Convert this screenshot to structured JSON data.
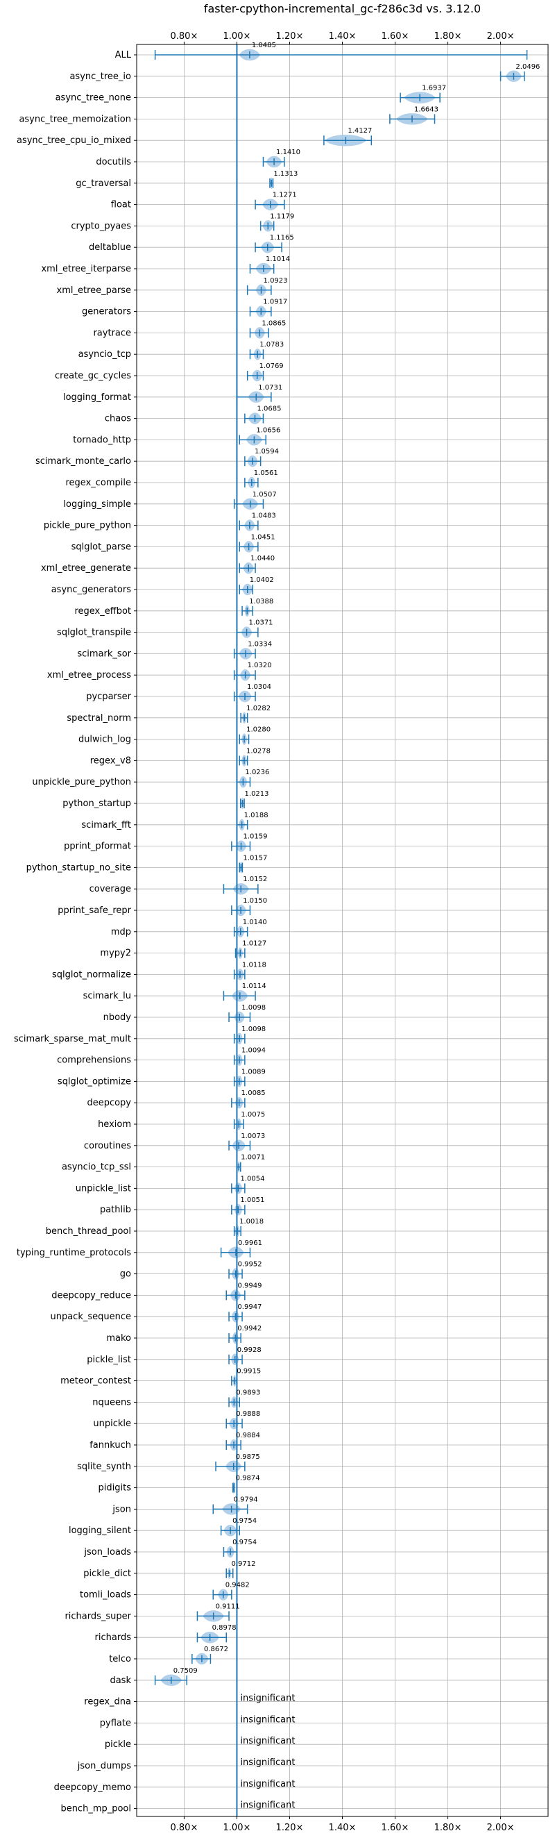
{
  "chart_data": {
    "type": "violin",
    "title": "faster-cpython-incremental_gc-f286c3d vs. 3.12.0",
    "xlim": [
      0.62,
      2.18
    ],
    "xticks": [
      0.8,
      1.0,
      1.2,
      1.4,
      1.6,
      1.8,
      2.0
    ],
    "xtick_labels": [
      "0.80×",
      "1.00×",
      "1.20×",
      "1.40×",
      "1.60×",
      "1.80×",
      "2.00×"
    ],
    "reference_line": 1.0,
    "grid": true,
    "colors": {
      "accent": "#1f77b4",
      "violin": "#a6c8e6",
      "grid": "#b0b0b0"
    },
    "benchmarks": [
      {
        "name": "ALL",
        "label": "1.0485",
        "center": 1.0485,
        "lo": 0.69,
        "hi": 2.1,
        "vw": 0.04
      },
      {
        "name": "async_tree_io",
        "label": "2.0496",
        "center": 2.0496,
        "lo": 2.0,
        "hi": 2.09,
        "vw": 0.03
      },
      {
        "name": "async_tree_none",
        "label": "1.6937",
        "center": 1.6937,
        "lo": 1.62,
        "hi": 1.77,
        "vw": 0.06
      },
      {
        "name": "async_tree_memoization",
        "label": "1.6643",
        "center": 1.6643,
        "lo": 1.58,
        "hi": 1.75,
        "vw": 0.06
      },
      {
        "name": "async_tree_cpu_io_mixed",
        "label": "1.4127",
        "center": 1.4127,
        "lo": 1.33,
        "hi": 1.51,
        "vw": 0.08
      },
      {
        "name": "docutils",
        "label": "1.1410",
        "center": 1.141,
        "lo": 1.1,
        "hi": 1.18,
        "vw": 0.03
      },
      {
        "name": "gc_traversal",
        "label": "1.1313",
        "center": 1.1313,
        "lo": 1.125,
        "hi": 1.137,
        "vw": 0.005
      },
      {
        "name": "float",
        "label": "1.1271",
        "center": 1.1271,
        "lo": 1.07,
        "hi": 1.18,
        "vw": 0.03
      },
      {
        "name": "crypto_pyaes",
        "label": "1.1179",
        "center": 1.1179,
        "lo": 1.09,
        "hi": 1.14,
        "vw": 0.02
      },
      {
        "name": "deltablue",
        "label": "1.1165",
        "center": 1.1165,
        "lo": 1.07,
        "hi": 1.17,
        "vw": 0.025
      },
      {
        "name": "xml_etree_iterparse",
        "label": "1.1014",
        "center": 1.1014,
        "lo": 1.05,
        "hi": 1.14,
        "vw": 0.03
      },
      {
        "name": "xml_etree_parse",
        "label": "1.0923",
        "center": 1.0923,
        "lo": 1.04,
        "hi": 1.13,
        "vw": 0.02
      },
      {
        "name": "generators",
        "label": "1.0917",
        "center": 1.0917,
        "lo": 1.05,
        "hi": 1.13,
        "vw": 0.02
      },
      {
        "name": "raytrace",
        "label": "1.0865",
        "center": 1.0865,
        "lo": 1.05,
        "hi": 1.12,
        "vw": 0.02
      },
      {
        "name": "asyncio_tcp",
        "label": "1.0783",
        "center": 1.0783,
        "lo": 1.05,
        "hi": 1.1,
        "vw": 0.015
      },
      {
        "name": "create_gc_cycles",
        "label": "1.0769",
        "center": 1.0769,
        "lo": 1.04,
        "hi": 1.1,
        "vw": 0.02
      },
      {
        "name": "logging_format",
        "label": "1.0731",
        "center": 1.0731,
        "lo": 1.0,
        "hi": 1.13,
        "vw": 0.03
      },
      {
        "name": "chaos",
        "label": "1.0685",
        "center": 1.0685,
        "lo": 1.03,
        "hi": 1.1,
        "vw": 0.025
      },
      {
        "name": "tornado_http",
        "label": "1.0656",
        "center": 1.0656,
        "lo": 1.01,
        "hi": 1.11,
        "vw": 0.03
      },
      {
        "name": "scimark_monte_carlo",
        "label": "1.0594",
        "center": 1.0594,
        "lo": 1.03,
        "hi": 1.09,
        "vw": 0.02
      },
      {
        "name": "regex_compile",
        "label": "1.0561",
        "center": 1.0561,
        "lo": 1.03,
        "hi": 1.08,
        "vw": 0.015
      },
      {
        "name": "logging_simple",
        "label": "1.0507",
        "center": 1.0507,
        "lo": 0.99,
        "hi": 1.1,
        "vw": 0.03
      },
      {
        "name": "pickle_pure_python",
        "label": "1.0483",
        "center": 1.0483,
        "lo": 1.01,
        "hi": 1.08,
        "vw": 0.02
      },
      {
        "name": "sqlglot_parse",
        "label": "1.0451",
        "center": 1.0451,
        "lo": 1.01,
        "hi": 1.08,
        "vw": 0.02
      },
      {
        "name": "xml_etree_generate",
        "label": "1.0440",
        "center": 1.044,
        "lo": 1.01,
        "hi": 1.07,
        "vw": 0.02
      },
      {
        "name": "async_generators",
        "label": "1.0402",
        "center": 1.0402,
        "lo": 1.01,
        "hi": 1.06,
        "vw": 0.02
      },
      {
        "name": "regex_effbot",
        "label": "1.0388",
        "center": 1.0388,
        "lo": 1.02,
        "hi": 1.06,
        "vw": 0.01
      },
      {
        "name": "sqlglot_transpile",
        "label": "1.0371",
        "center": 1.0371,
        "lo": 1.0,
        "hi": 1.08,
        "vw": 0.02
      },
      {
        "name": "scimark_sor",
        "label": "1.0334",
        "center": 1.0334,
        "lo": 0.99,
        "hi": 1.07,
        "vw": 0.025
      },
      {
        "name": "xml_etree_process",
        "label": "1.0320",
        "center": 1.032,
        "lo": 0.99,
        "hi": 1.07,
        "vw": 0.02
      },
      {
        "name": "pycparser",
        "label": "1.0304",
        "center": 1.0304,
        "lo": 0.99,
        "hi": 1.07,
        "vw": 0.025
      },
      {
        "name": "spectral_norm",
        "label": "1.0282",
        "center": 1.0282,
        "lo": 1.015,
        "hi": 1.04,
        "vw": 0.008
      },
      {
        "name": "dulwich_log",
        "label": "1.0280",
        "center": 1.028,
        "lo": 1.01,
        "hi": 1.045,
        "vw": 0.01
      },
      {
        "name": "regex_v8",
        "label": "1.0278",
        "center": 1.0278,
        "lo": 1.01,
        "hi": 1.04,
        "vw": 0.01
      },
      {
        "name": "unpickle_pure_python",
        "label": "1.0236",
        "center": 1.0236,
        "lo": 1.0,
        "hi": 1.05,
        "vw": 0.015
      },
      {
        "name": "python_startup",
        "label": "1.0213",
        "center": 1.0213,
        "lo": 1.014,
        "hi": 1.028,
        "vw": 0.005
      },
      {
        "name": "scimark_fft",
        "label": "1.0188",
        "center": 1.0188,
        "lo": 1.0,
        "hi": 1.04,
        "vw": 0.012
      },
      {
        "name": "pprint_pformat",
        "label": "1.0159",
        "center": 1.0159,
        "lo": 0.98,
        "hi": 1.05,
        "vw": 0.02
      },
      {
        "name": "python_startup_no_site",
        "label": "1.0157",
        "center": 1.0157,
        "lo": 1.01,
        "hi": 1.021,
        "vw": 0.004
      },
      {
        "name": "coverage",
        "label": "1.0152",
        "center": 1.0152,
        "lo": 0.95,
        "hi": 1.08,
        "vw": 0.03
      },
      {
        "name": "pprint_safe_repr",
        "label": "1.0150",
        "center": 1.015,
        "lo": 0.98,
        "hi": 1.05,
        "vw": 0.02
      },
      {
        "name": "mdp",
        "label": "1.0140",
        "center": 1.014,
        "lo": 0.99,
        "hi": 1.04,
        "vw": 0.015
      },
      {
        "name": "mypy2",
        "label": "1.0127",
        "center": 1.0127,
        "lo": 0.995,
        "hi": 1.03,
        "vw": 0.01
      },
      {
        "name": "sqlglot_normalize",
        "label": "1.0118",
        "center": 1.0118,
        "lo": 0.99,
        "hi": 1.03,
        "vw": 0.015
      },
      {
        "name": "scimark_lu",
        "label": "1.0114",
        "center": 1.0114,
        "lo": 0.95,
        "hi": 1.07,
        "vw": 0.03
      },
      {
        "name": "nbody",
        "label": "1.0098",
        "center": 1.0098,
        "lo": 0.97,
        "hi": 1.05,
        "vw": 0.02
      },
      {
        "name": "scimark_sparse_mat_mult",
        "label": "1.0098",
        "center": 1.0098,
        "lo": 0.99,
        "hi": 1.03,
        "vw": 0.012
      },
      {
        "name": "comprehensions",
        "label": "1.0094",
        "center": 1.0094,
        "lo": 0.99,
        "hi": 1.03,
        "vw": 0.012
      },
      {
        "name": "sqlglot_optimize",
        "label": "1.0089",
        "center": 1.0089,
        "lo": 0.99,
        "hi": 1.03,
        "vw": 0.012
      },
      {
        "name": "deepcopy",
        "label": "1.0085",
        "center": 1.0085,
        "lo": 0.98,
        "hi": 1.03,
        "vw": 0.015
      },
      {
        "name": "hexiom",
        "label": "1.0075",
        "center": 1.0075,
        "lo": 0.99,
        "hi": 1.025,
        "vw": 0.01
      },
      {
        "name": "coroutines",
        "label": "1.0073",
        "center": 1.0073,
        "lo": 0.97,
        "hi": 1.05,
        "vw": 0.025
      },
      {
        "name": "asyncio_tcp_ssl",
        "label": "1.0071",
        "center": 1.0071,
        "lo": 1.0,
        "hi": 1.014,
        "vw": 0.004
      },
      {
        "name": "unpickle_list",
        "label": "1.0054",
        "center": 1.0054,
        "lo": 0.98,
        "hi": 1.03,
        "vw": 0.015
      },
      {
        "name": "pathlib",
        "label": "1.0051",
        "center": 1.0051,
        "lo": 0.98,
        "hi": 1.03,
        "vw": 0.015
      },
      {
        "name": "bench_thread_pool",
        "label": "1.0018",
        "center": 1.0018,
        "lo": 0.99,
        "hi": 1.015,
        "vw": 0.01
      },
      {
        "name": "typing_runtime_protocols",
        "label": "0.9961",
        "center": 0.9961,
        "lo": 0.94,
        "hi": 1.05,
        "vw": 0.03
      },
      {
        "name": "go",
        "label": "0.9952",
        "center": 0.9952,
        "lo": 0.97,
        "hi": 1.02,
        "vw": 0.015
      },
      {
        "name": "deepcopy_reduce",
        "label": "0.9949",
        "center": 0.9949,
        "lo": 0.96,
        "hi": 1.03,
        "vw": 0.02
      },
      {
        "name": "unpack_sequence",
        "label": "0.9947",
        "center": 0.9947,
        "lo": 0.97,
        "hi": 1.02,
        "vw": 0.015
      },
      {
        "name": "mako",
        "label": "0.9942",
        "center": 0.9942,
        "lo": 0.97,
        "hi": 1.015,
        "vw": 0.012
      },
      {
        "name": "pickle_list",
        "label": "0.9928",
        "center": 0.9928,
        "lo": 0.97,
        "hi": 1.02,
        "vw": 0.015
      },
      {
        "name": "meteor_contest",
        "label": "0.9915",
        "center": 0.9915,
        "lo": 0.98,
        "hi": 1.0,
        "vw": 0.007
      },
      {
        "name": "nqueens",
        "label": "0.9893",
        "center": 0.9893,
        "lo": 0.97,
        "hi": 1.01,
        "vw": 0.012
      },
      {
        "name": "unpickle",
        "label": "0.9888",
        "center": 0.9888,
        "lo": 0.96,
        "hi": 1.02,
        "vw": 0.018
      },
      {
        "name": "fannkuch",
        "label": "0.9884",
        "center": 0.9884,
        "lo": 0.96,
        "hi": 1.015,
        "vw": 0.015
      },
      {
        "name": "sqlite_synth",
        "label": "0.9875",
        "center": 0.9875,
        "lo": 0.92,
        "hi": 1.03,
        "vw": 0.03
      },
      {
        "name": "pidigits",
        "label": "0.9874",
        "center": 0.9874,
        "lo": 0.985,
        "hi": 0.99,
        "vw": 0.003
      },
      {
        "name": "json",
        "label": "0.9794",
        "center": 0.9794,
        "lo": 0.91,
        "hi": 1.04,
        "vw": 0.035
      },
      {
        "name": "logging_silent",
        "label": "0.9754",
        "center": 0.9754,
        "lo": 0.94,
        "hi": 1.01,
        "vw": 0.025
      },
      {
        "name": "json_loads",
        "label": "0.9754",
        "center": 0.9754,
        "lo": 0.95,
        "hi": 1.0,
        "vw": 0.015
      },
      {
        "name": "pickle_dict",
        "label": "0.9712",
        "center": 0.9712,
        "lo": 0.96,
        "hi": 0.985,
        "vw": 0.007
      },
      {
        "name": "tomli_loads",
        "label": "0.9482",
        "center": 0.9482,
        "lo": 0.91,
        "hi": 0.98,
        "vw": 0.02
      },
      {
        "name": "richards_super",
        "label": "0.9111",
        "center": 0.9111,
        "lo": 0.85,
        "hi": 0.97,
        "vw": 0.04
      },
      {
        "name": "richards",
        "label": "0.8978",
        "center": 0.8978,
        "lo": 0.85,
        "hi": 0.96,
        "vw": 0.035
      },
      {
        "name": "telco",
        "label": "0.8672",
        "center": 0.8672,
        "lo": 0.83,
        "hi": 0.9,
        "vw": 0.025
      },
      {
        "name": "dask",
        "label": "0.7509",
        "center": 0.7509,
        "lo": 0.69,
        "hi": 0.81,
        "vw": 0.04
      },
      {
        "name": "regex_dna",
        "label": "insignificant",
        "insignificant": true
      },
      {
        "name": "pyflate",
        "label": "insignificant",
        "insignificant": true
      },
      {
        "name": "pickle",
        "label": "insignificant",
        "insignificant": true
      },
      {
        "name": "json_dumps",
        "label": "insignificant",
        "insignificant": true
      },
      {
        "name": "deepcopy_memo",
        "label": "insignificant",
        "insignificant": true
      },
      {
        "name": "bench_mp_pool",
        "label": "insignificant",
        "insignificant": true
      }
    ]
  }
}
